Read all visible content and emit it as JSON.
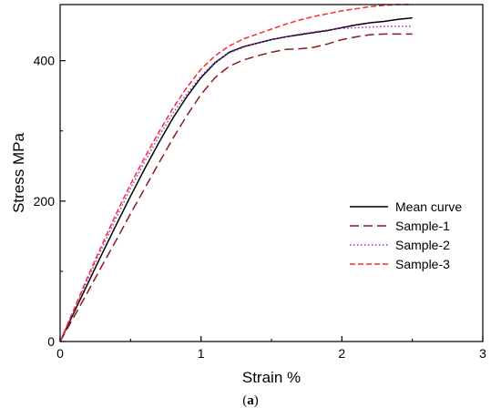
{
  "caption": {
    "open": "(",
    "letter": "a",
    "close": ")"
  },
  "chart_data": {
    "type": "line",
    "title": "",
    "xlabel": "Strain %",
    "ylabel": "Stress MPa",
    "xlim": [
      0,
      3
    ],
    "ylim": [
      0,
      480
    ],
    "xticks": [
      0,
      1,
      2,
      3
    ],
    "yticks": [
      0,
      200,
      400
    ],
    "xtick_labels": [
      "0",
      "1",
      "2",
      "3"
    ],
    "ytick_labels": [
      "0",
      "200",
      "400"
    ],
    "grid": false,
    "legend_position": "right",
    "series": [
      {
        "name": "Mean curve",
        "color": "#000000",
        "style": "solid",
        "x": [
          0,
          0.1,
          0.2,
          0.3,
          0.4,
          0.5,
          0.6,
          0.7,
          0.8,
          0.9,
          1.0,
          1.1,
          1.2,
          1.3,
          1.4,
          1.5,
          1.6,
          1.7,
          1.8,
          1.9,
          2.0,
          2.1,
          2.2,
          2.3,
          2.4,
          2.5
        ],
        "y": [
          0,
          42,
          84,
          126,
          167,
          207,
          246,
          283,
          318,
          349,
          376,
          397,
          412,
          420,
          425,
          430,
          434,
          437,
          440,
          443,
          447,
          451,
          454,
          456,
          459,
          461
        ]
      },
      {
        "name": "Sample-1",
        "color": "#8b1a1a",
        "style": "long-dash",
        "x": [
          0,
          0.1,
          0.2,
          0.3,
          0.4,
          0.5,
          0.6,
          0.7,
          0.8,
          0.9,
          1.0,
          1.1,
          1.2,
          1.3,
          1.4,
          1.5,
          1.6,
          1.7,
          1.8,
          1.9,
          2.0,
          2.1,
          2.2,
          2.3,
          2.4,
          2.5
        ],
        "y": [
          0,
          36,
          72,
          109,
          145,
          182,
          218,
          254,
          289,
          322,
          352,
          376,
          392,
          401,
          407,
          412,
          416,
          417,
          419,
          424,
          430,
          434,
          437,
          438,
          438,
          438
        ]
      },
      {
        "name": "Sample-2",
        "color": "#9b30c8",
        "style": "dotted",
        "x": [
          0,
          0.1,
          0.2,
          0.3,
          0.4,
          0.5,
          0.6,
          0.7,
          0.8,
          0.9,
          1.0,
          1.1,
          1.2,
          1.3,
          1.4,
          1.5,
          1.6,
          1.7,
          1.8,
          1.9,
          2.0,
          2.1,
          2.2,
          2.3,
          2.4,
          2.5
        ],
        "y": [
          0,
          45,
          90,
          134,
          177,
          218,
          256,
          292,
          325,
          353,
          378,
          398,
          411,
          419,
          425,
          430,
          434,
          438,
          441,
          444,
          446,
          447,
          448,
          449,
          449,
          449
        ]
      },
      {
        "name": "Sample-3",
        "color": "#ff2a2a",
        "style": "short-dash",
        "x": [
          0,
          0.1,
          0.2,
          0.3,
          0.4,
          0.5,
          0.6,
          0.7,
          0.8,
          0.9,
          1.0,
          1.1,
          1.2,
          1.3,
          1.4,
          1.5,
          1.6,
          1.7,
          1.8,
          1.9,
          2.0,
          2.1,
          2.2,
          2.3,
          2.4,
          2.5
        ],
        "y": [
          0,
          47,
          94,
          139,
          183,
          224,
          262,
          298,
          332,
          362,
          388,
          407,
          421,
          431,
          438,
          445,
          452,
          458,
          463,
          467,
          471,
          474,
          477,
          479,
          480,
          480
        ]
      }
    ]
  }
}
